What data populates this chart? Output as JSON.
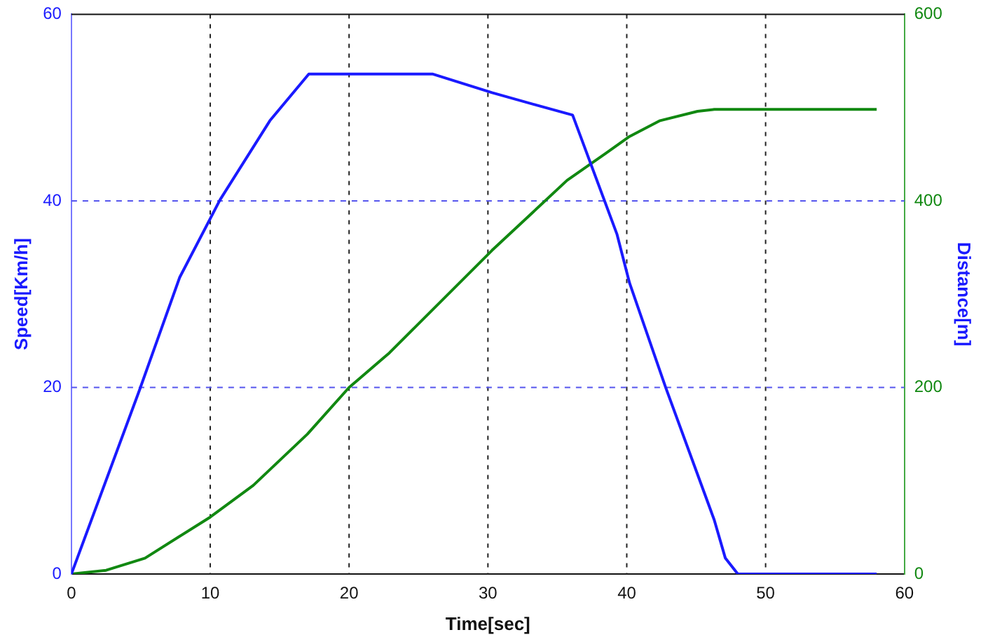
{
  "chart_data": {
    "type": "line",
    "xlabel": "Time[sec]",
    "ylabel": "Speed[Km/h]",
    "y2label": "Distance[m]",
    "xlim": [
      0,
      60
    ],
    "xticks": [
      0,
      10,
      20,
      30,
      40,
      50,
      60
    ],
    "ylim": [
      0,
      60
    ],
    "yticks": [
      0,
      20,
      40,
      60
    ],
    "y2lim": [
      0,
      600
    ],
    "y2ticks": [
      0,
      200,
      400,
      600
    ],
    "grid": true,
    "legend": false,
    "marker": "none",
    "line_style": "solid",
    "series": [
      {
        "color": "#1a1aff",
        "x": [
          0,
          4.9,
          7.8,
          10.7,
          14.3,
          17.1,
          26,
          30.3,
          33.4,
          36.1,
          39.3,
          40.2,
          42.8,
          46.3,
          47.1,
          48,
          58
        ],
        "values": [
          0,
          19.7,
          31.8,
          40.1,
          48.6,
          53.6,
          53.6,
          51.6,
          50.3,
          49.2,
          36.4,
          31.2,
          20,
          5.8,
          1.7,
          0,
          0
        ]
      },
      {
        "color": "#118811",
        "axis": "y2",
        "x": [
          0,
          2.5,
          5.3,
          10,
          13.1,
          17,
          20,
          22.9,
          30.3,
          35.7,
          38.5,
          40.2,
          42.4,
          45.1,
          46.3,
          58
        ],
        "values": [
          0,
          4,
          17,
          61,
          95,
          150,
          200,
          237,
          347,
          422,
          451,
          469,
          486,
          496,
          498,
          498
        ]
      }
    ]
  }
}
